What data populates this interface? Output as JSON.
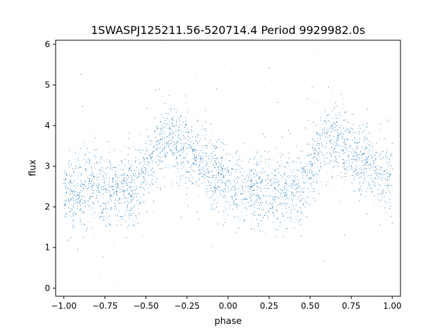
{
  "chart_data": {
    "type": "scatter",
    "title": "1SWASPJ125211.56-520714.4 Period 9929982.0s",
    "xlabel": "phase",
    "ylabel": "flux",
    "xlim": [
      -1.05,
      1.05
    ],
    "ylim": [
      -0.2,
      6.1
    ],
    "x_ticks": [
      -1.0,
      -0.75,
      -0.5,
      -0.25,
      0.0,
      0.25,
      0.5,
      0.75,
      1.0
    ],
    "x_tick_labels": [
      "−1.00",
      "−0.75",
      "−0.50",
      "−0.25",
      "0.00",
      "0.25",
      "0.50",
      "0.75",
      "1.00"
    ],
    "y_ticks": [
      0,
      1,
      2,
      3,
      4,
      5,
      6
    ],
    "y_tick_labels": [
      "0",
      "1",
      "2",
      "3",
      "4",
      "5",
      "6"
    ],
    "grid": false,
    "legend": "none",
    "marker_color": "#1f77b4",
    "series": [
      {
        "phase_range": [
          -1.0,
          1.0
        ],
        "mean_flux_profile": {
          "phase": [
            -1.0,
            -0.95,
            -0.9,
            -0.85,
            -0.8,
            -0.75,
            -0.7,
            -0.65,
            -0.6,
            -0.55,
            -0.5,
            -0.45,
            -0.4,
            -0.35,
            -0.3,
            -0.25,
            -0.2,
            -0.15,
            -0.1,
            -0.05,
            0.0,
            0.05,
            0.1,
            0.15,
            0.2,
            0.25,
            0.3,
            0.35,
            0.4,
            0.45,
            0.5,
            0.55,
            0.6,
            0.65,
            0.7,
            0.75,
            0.8,
            0.85,
            0.9,
            0.95,
            1.0
          ],
          "flux": [
            2.3,
            2.35,
            2.4,
            2.5,
            2.6,
            2.4,
            2.4,
            2.5,
            2.4,
            2.5,
            2.9,
            3.3,
            3.6,
            3.7,
            3.5,
            3.4,
            3.2,
            3.1,
            2.9,
            2.7,
            2.6,
            2.4,
            2.3,
            2.35,
            2.4,
            2.5,
            2.4,
            2.4,
            2.5,
            2.4,
            2.9,
            3.3,
            3.6,
            3.7,
            3.5,
            3.4,
            3.2,
            3.1,
            2.9,
            2.7,
            2.6
          ]
        },
        "scatter_width": 0.45,
        "n_points": 14000
      }
    ]
  }
}
